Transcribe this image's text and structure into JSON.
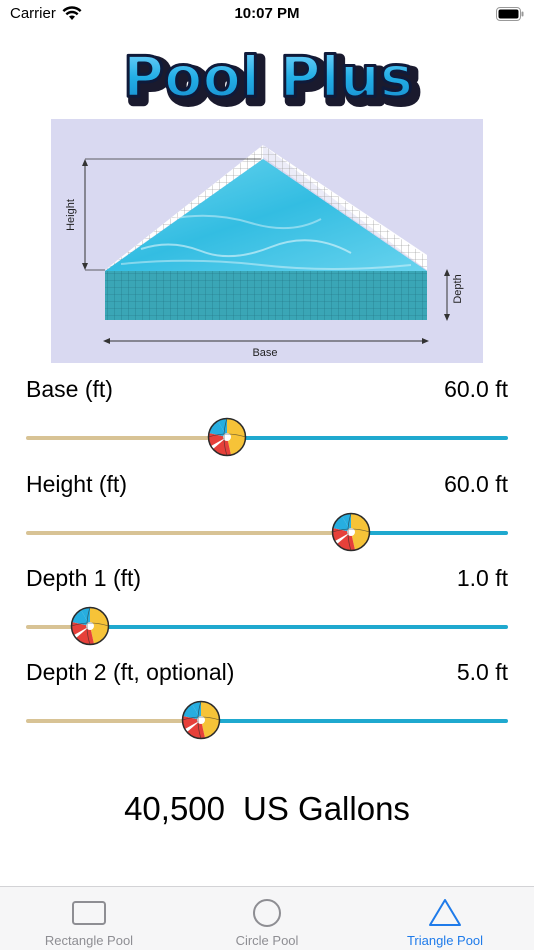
{
  "status_bar": {
    "carrier": "Carrier",
    "time": "10:07 PM"
  },
  "app": {
    "title": "Pool Plus"
  },
  "diagram": {
    "height_label": "Height",
    "depth_label": "Depth",
    "base_label": "Base"
  },
  "sliders": [
    {
      "label": "Base (ft)",
      "value_text": "60.0 ft",
      "fraction": 0.41
    },
    {
      "label": "Height (ft)",
      "value_text": "60.0 ft",
      "fraction": 0.69
    },
    {
      "label": "Depth 1 (ft)",
      "value_text": "1.0 ft",
      "fraction": 0.1
    },
    {
      "label": "Depth 2 (ft, optional)",
      "value_text": "5.0 ft",
      "fraction": 0.35
    }
  ],
  "result": {
    "amount": "40,500",
    "unit": "US Gallons"
  },
  "tabs": [
    {
      "label": "Rectangle Pool",
      "active": false,
      "icon": "rectangle-icon"
    },
    {
      "label": "Circle Pool",
      "active": false,
      "icon": "circle-icon"
    },
    {
      "label": "Triangle Pool",
      "active": true,
      "icon": "triangle-icon"
    }
  ],
  "colors": {
    "track_min": "#d8c395",
    "track_max": "#1fa9cf",
    "tab_active": "#1f7bea",
    "tab_inactive": "#8e8e93",
    "logo_fill": "#22aee6"
  }
}
